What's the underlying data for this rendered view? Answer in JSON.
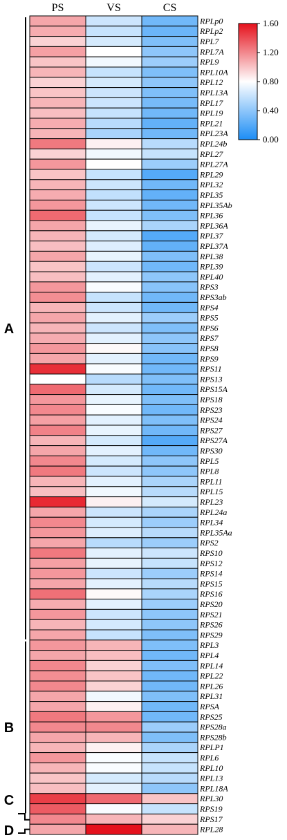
{
  "chart_data": {
    "type": "heatmap",
    "columns": [
      "PS",
      "VS",
      "CS"
    ],
    "rows": [
      {
        "gene": "RPLp0",
        "values": [
          1.1,
          0.62,
          0.3
        ]
      },
      {
        "gene": "RPLp2",
        "values": [
          1.08,
          0.6,
          0.28
        ]
      },
      {
        "gene": "RPL7",
        "values": [
          0.95,
          0.65,
          0.35
        ]
      },
      {
        "gene": "RPL7A",
        "values": [
          1.12,
          0.8,
          0.4
        ]
      },
      {
        "gene": "RPL9",
        "values": [
          1.0,
          0.75,
          0.45
        ]
      },
      {
        "gene": "RPL10A",
        "values": [
          1.05,
          0.6,
          0.35
        ]
      },
      {
        "gene": "RPL12",
        "values": [
          0.95,
          0.65,
          0.4
        ]
      },
      {
        "gene": "RPL13A",
        "values": [
          1.0,
          0.62,
          0.35
        ]
      },
      {
        "gene": "RPL17",
        "values": [
          1.05,
          0.62,
          0.32
        ]
      },
      {
        "gene": "RPL19",
        "values": [
          1.02,
          0.6,
          0.3
        ]
      },
      {
        "gene": "RPL21",
        "values": [
          1.08,
          0.55,
          0.25
        ]
      },
      {
        "gene": "RPL23A",
        "values": [
          1.05,
          0.5,
          0.3
        ]
      },
      {
        "gene": "RPL24b",
        "values": [
          1.25,
          0.85,
          0.55
        ]
      },
      {
        "gene": "RPL27",
        "values": [
          0.95,
          0.75,
          0.6
        ]
      },
      {
        "gene": "RPL27A",
        "values": [
          1.15,
          0.8,
          0.45
        ]
      },
      {
        "gene": "RPL29",
        "values": [
          1.0,
          0.6,
          0.2
        ]
      },
      {
        "gene": "RPL32",
        "values": [
          1.05,
          0.62,
          0.3
        ]
      },
      {
        "gene": "RPL35",
        "values": [
          1.08,
          0.58,
          0.25
        ]
      },
      {
        "gene": "RPL35Ab",
        "values": [
          1.15,
          0.62,
          0.3
        ]
      },
      {
        "gene": "RPL36",
        "values": [
          1.3,
          0.6,
          0.35
        ]
      },
      {
        "gene": "RPL36A",
        "values": [
          1.1,
          0.72,
          0.5
        ]
      },
      {
        "gene": "RPL37",
        "values": [
          1.05,
          0.65,
          0.2
        ]
      },
      {
        "gene": "RPL37A",
        "values": [
          1.02,
          0.68,
          0.25
        ]
      },
      {
        "gene": "RPL38",
        "values": [
          1.1,
          0.72,
          0.35
        ]
      },
      {
        "gene": "RPL39",
        "values": [
          1.0,
          0.62,
          0.3
        ]
      },
      {
        "gene": "RPL40",
        "values": [
          1.02,
          0.7,
          0.4
        ]
      },
      {
        "gene": "RPS3",
        "values": [
          1.15,
          0.78,
          0.38
        ]
      },
      {
        "gene": "RPS3ab",
        "values": [
          1.18,
          0.6,
          0.3
        ]
      },
      {
        "gene": "RPS4",
        "values": [
          1.05,
          0.62,
          0.3
        ]
      },
      {
        "gene": "RPS5",
        "values": [
          1.1,
          0.7,
          0.45
        ]
      },
      {
        "gene": "RPS6",
        "values": [
          1.05,
          0.62,
          0.35
        ]
      },
      {
        "gene": "RPS7",
        "values": [
          1.08,
          0.7,
          0.4
        ]
      },
      {
        "gene": "RPS8",
        "values": [
          1.15,
          0.82,
          0.38
        ]
      },
      {
        "gene": "RPS9",
        "values": [
          1.1,
          0.7,
          0.3
        ]
      },
      {
        "gene": "RPS11",
        "values": [
          1.5,
          0.78,
          0.3
        ]
      },
      {
        "gene": "RPS13",
        "values": [
          0.8,
          0.55,
          0.35
        ]
      },
      {
        "gene": "RPS15A",
        "values": [
          1.3,
          0.65,
          0.3
        ]
      },
      {
        "gene": "RPS18",
        "values": [
          1.15,
          0.72,
          0.35
        ]
      },
      {
        "gene": "RPS23",
        "values": [
          1.2,
          0.78,
          0.3
        ]
      },
      {
        "gene": "RPS24",
        "values": [
          1.12,
          0.7,
          0.35
        ]
      },
      {
        "gene": "RPS27",
        "values": [
          1.22,
          0.72,
          0.3
        ]
      },
      {
        "gene": "RPS27A",
        "values": [
          1.05,
          0.65,
          0.2
        ]
      },
      {
        "gene": "RPS30",
        "values": [
          1.1,
          0.7,
          0.3
        ]
      },
      {
        "gene": "RPL5",
        "values": [
          1.2,
          0.65,
          0.4
        ]
      },
      {
        "gene": "RPL8",
        "values": [
          1.25,
          0.62,
          0.4
        ]
      },
      {
        "gene": "RPL11",
        "values": [
          1.05,
          0.7,
          0.5
        ]
      },
      {
        "gene": "RPL15",
        "values": [
          1.02,
          0.75,
          0.55
        ]
      },
      {
        "gene": "RPL23",
        "values": [
          1.52,
          0.85,
          0.65
        ]
      },
      {
        "gene": "RPL24a",
        "values": [
          1.1,
          0.62,
          0.5
        ]
      },
      {
        "gene": "RPL34",
        "values": [
          1.2,
          0.65,
          0.45
        ]
      },
      {
        "gene": "RPL35Aa",
        "values": [
          1.15,
          0.68,
          0.55
        ]
      },
      {
        "gene": "RPS2",
        "values": [
          1.1,
          0.55,
          0.45
        ]
      },
      {
        "gene": "RPS10",
        "values": [
          1.25,
          0.7,
          0.62
        ]
      },
      {
        "gene": "RPS12",
        "values": [
          1.12,
          0.72,
          0.6
        ]
      },
      {
        "gene": "RPS14",
        "values": [
          1.15,
          0.62,
          0.45
        ]
      },
      {
        "gene": "RPS15",
        "values": [
          1.1,
          0.7,
          0.55
        ]
      },
      {
        "gene": "RPS16",
        "values": [
          1.28,
          0.82,
          0.5
        ]
      },
      {
        "gene": "RPS20",
        "values": [
          1.08,
          0.7,
          0.45
        ]
      },
      {
        "gene": "RPS21",
        "values": [
          1.15,
          0.62,
          0.4
        ]
      },
      {
        "gene": "RPS26",
        "values": [
          1.05,
          0.65,
          0.4
        ]
      },
      {
        "gene": "RPS29",
        "values": [
          1.1,
          0.6,
          0.35
        ]
      },
      {
        "gene": "RPL3",
        "values": [
          1.15,
          1.05,
          0.35
        ]
      },
      {
        "gene": "RPL4",
        "values": [
          1.1,
          1.02,
          0.3
        ]
      },
      {
        "gene": "RPL14",
        "values": [
          1.2,
          0.95,
          0.35
        ]
      },
      {
        "gene": "RPL22",
        "values": [
          1.18,
          1.0,
          0.3
        ]
      },
      {
        "gene": "RPL26",
        "values": [
          1.2,
          0.95,
          0.3
        ]
      },
      {
        "gene": "RPL31",
        "values": [
          1.1,
          0.75,
          0.35
        ]
      },
      {
        "gene": "RPSA",
        "values": [
          1.1,
          0.85,
          0.3
        ]
      },
      {
        "gene": "RPS25",
        "values": [
          1.25,
          1.15,
          0.3
        ]
      },
      {
        "gene": "RPS28a",
        "values": [
          1.2,
          1.2,
          0.45
        ]
      },
      {
        "gene": "RPS28b",
        "values": [
          1.1,
          1.05,
          0.35
        ]
      },
      {
        "gene": "RPLP1",
        "values": [
          1.05,
          0.85,
          0.5
        ]
      },
      {
        "gene": "RPL6",
        "values": [
          1.15,
          0.78,
          0.6
        ]
      },
      {
        "gene": "RPL10",
        "values": [
          1.05,
          0.78,
          0.6
        ]
      },
      {
        "gene": "RPL13",
        "values": [
          1.0,
          0.65,
          0.55
        ]
      },
      {
        "gene": "RPL18A",
        "values": [
          1.02,
          0.7,
          0.4
        ]
      },
      {
        "gene": "RPL30",
        "values": [
          1.45,
          1.3,
          1.0
        ]
      },
      {
        "gene": "RPS19",
        "values": [
          1.35,
          0.78,
          0.6
        ]
      },
      {
        "gene": "RPS17",
        "values": [
          1.2,
          1.05,
          0.95
        ]
      },
      {
        "gene": "RPL28",
        "values": [
          1.1,
          1.6,
          1.05
        ]
      }
    ],
    "groups": [
      {
        "label": "A",
        "first_row": 0,
        "last_row": 60
      },
      {
        "label": "B",
        "first_row": 61,
        "last_row": 77
      },
      {
        "label": "C",
        "first_row": 78,
        "last_row": 78
      },
      {
        "label": "D",
        "first_row": 79,
        "last_row": 79
      }
    ],
    "colorbar": {
      "min": 0.0,
      "max": 1.6,
      "ticks": [
        "1.60",
        "1.20",
        "0.80",
        "0.40",
        "0.00"
      ],
      "colors": {
        "low": "#1c8df5",
        "mid": "#ffffff",
        "high": "#e5111c"
      }
    }
  }
}
